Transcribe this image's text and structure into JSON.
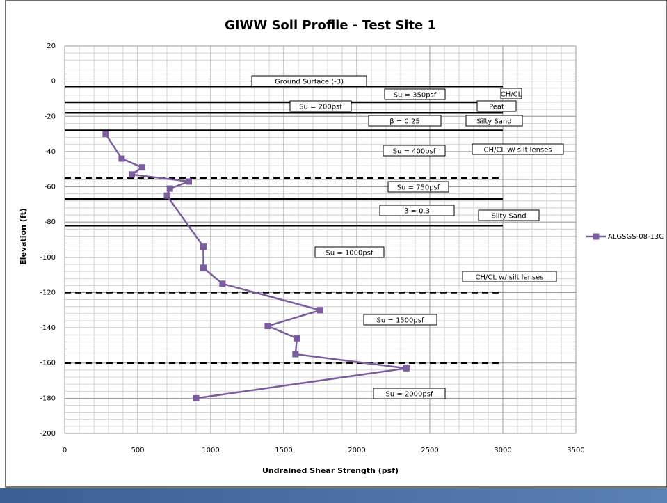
{
  "chart_data": {
    "type": "line",
    "title": "GIWW Soil Profile - Test Site 1",
    "x_label": "Undrained Shear Strength (psf)",
    "y_label": "Elevation (ft)",
    "xlim": [
      0,
      3500
    ],
    "ylim": [
      -200,
      20
    ],
    "xticks": [
      0,
      500,
      1000,
      1500,
      2000,
      2500,
      3000,
      3500
    ],
    "yticks": [
      20,
      0,
      -20,
      -40,
      -60,
      -80,
      -100,
      -120,
      -140,
      -160,
      -180,
      -200
    ],
    "grid": true,
    "x_minor_step": 100,
    "y_minor_step": 4,
    "legend": "right",
    "series": [
      {
        "name": "ALGSGS-08-13C",
        "color": "#7b5c9e",
        "x": [
          280,
          390,
          530,
          460,
          850,
          720,
          700,
          950,
          950,
          1080,
          1750,
          1390,
          1590,
          1580,
          2340,
          900
        ],
        "values": [
          -30,
          -44,
          -49,
          -53,
          -57,
          -61,
          -65,
          -94,
          -106,
          -115,
          -130,
          -139,
          -146,
          -155,
          -163,
          -180
        ]
      }
    ],
    "layer_xlim": [
      0,
      3000
    ],
    "layer_lines": [
      {
        "y": -3,
        "style": "solid"
      },
      {
        "y": -12,
        "style": "solid"
      },
      {
        "y": -18,
        "style": "solid"
      },
      {
        "y": -28,
        "style": "solid"
      },
      {
        "y": -55,
        "style": "dashed"
      },
      {
        "y": -67,
        "style": "solid"
      },
      {
        "y": -82,
        "style": "solid"
      },
      {
        "y": -120,
        "style": "dashed"
      },
      {
        "y": -160,
        "style": "dashed"
      }
    ],
    "annotations": [
      "Ground Surface (-3)",
      "Su = 350psf",
      "CH/CL",
      "Su = 200psf",
      "Peat",
      "β = 0.25",
      "Silty Sand",
      "Su = 400psf",
      "CH/CL w/ silt lenses",
      "Su = 750psf",
      "β = 0.3",
      "Silty Sand",
      "Su = 1000psf",
      "CH/CL w/ silt lenses",
      "Su = 1500psf",
      "Su = 2000psf"
    ]
  }
}
